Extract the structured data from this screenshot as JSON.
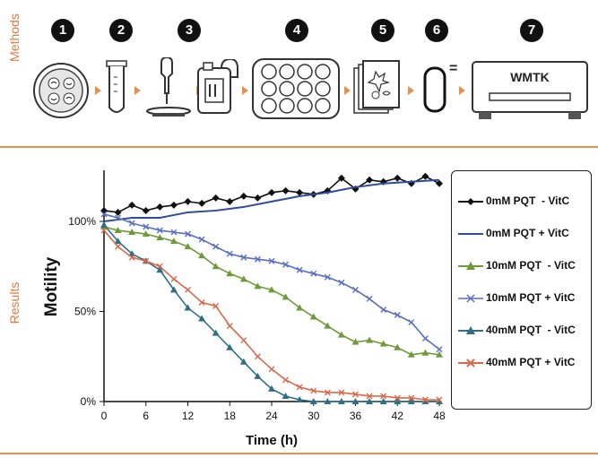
{
  "methods": {
    "label": "Methods",
    "steps": [
      "1",
      "2",
      "3",
      "4",
      "5",
      "6",
      "7"
    ],
    "device_label": "WMTK",
    "equals": "=",
    "icons": [
      "petri-dish-icon",
      "test-tube-icon",
      "pipette-drop-icon",
      "incubator-icon",
      "well-plate-icon",
      "image-stack-icon",
      "capsule-icon",
      "wmtk-device-icon"
    ],
    "accent_color": "#e8914e"
  },
  "results": {
    "label": "Results"
  },
  "chart_data": {
    "type": "line",
    "xlabel": "Time (h)",
    "ylabel": "Motility",
    "xlim": [
      0,
      48
    ],
    "ylim": [
      0,
      100
    ],
    "xticks": [
      0,
      6,
      12,
      18,
      24,
      30,
      36,
      42,
      48
    ],
    "yticks": [
      0,
      50,
      100
    ],
    "ytick_labels": [
      "0%",
      "50%",
      "100%"
    ],
    "grid": false,
    "legend_position": "right",
    "series": [
      {
        "name": "0mM PQT  - VitC",
        "color": "#111111",
        "marker": "diamond",
        "x": [
          0,
          2,
          4,
          6,
          8,
          10,
          12,
          14,
          16,
          18,
          20,
          22,
          24,
          26,
          28,
          30,
          32,
          34,
          36,
          38,
          40,
          42,
          44,
          46,
          48
        ],
        "y": [
          106,
          105,
          109,
          106,
          108,
          109,
          111,
          110,
          113,
          111,
          114,
          113,
          116,
          117,
          116,
          115,
          117,
          124,
          118,
          123,
          122,
          124,
          121,
          125,
          121
        ]
      },
      {
        "name": "0mM PQT + VitC",
        "color": "#2f4b9c",
        "marker": "none",
        "x": [
          0,
          4,
          8,
          12,
          16,
          20,
          24,
          28,
          32,
          36,
          40,
          44,
          48
        ],
        "y": [
          100,
          102,
          102,
          105,
          106,
          108,
          111,
          114,
          116,
          119,
          121,
          122,
          123
        ]
      },
      {
        "name": "10mM PQT  - VitC",
        "color": "#6f9a3a",
        "marker": "triangle",
        "x": [
          0,
          2,
          4,
          6,
          8,
          10,
          12,
          14,
          16,
          18,
          20,
          22,
          24,
          26,
          28,
          30,
          32,
          34,
          36,
          38,
          40,
          42,
          44,
          46,
          48
        ],
        "y": [
          97,
          95,
          94,
          93,
          91,
          89,
          86,
          81,
          75,
          71,
          68,
          64,
          62,
          58,
          52,
          47,
          42,
          37,
          33,
          34,
          32,
          30,
          26,
          27,
          26
        ]
      },
      {
        "name": "10mM PQT + VitC",
        "color": "#5a6fbf",
        "marker": "x",
        "x": [
          0,
          2,
          4,
          6,
          8,
          10,
          12,
          14,
          16,
          18,
          20,
          22,
          24,
          26,
          28,
          30,
          32,
          34,
          36,
          38,
          40,
          42,
          44,
          46,
          48
        ],
        "y": [
          104,
          102,
          99,
          97,
          95,
          94,
          93,
          90,
          86,
          82,
          80,
          79,
          78,
          76,
          73,
          71,
          69,
          66,
          62,
          57,
          51,
          48,
          44,
          35,
          29
        ]
      },
      {
        "name": "40mM PQT  - VitC",
        "color": "#2d6f86",
        "marker": "triangle",
        "x": [
          0,
          2,
          4,
          6,
          8,
          10,
          12,
          14,
          16,
          18,
          20,
          22,
          24,
          26,
          28,
          30,
          32,
          34,
          36,
          38,
          40,
          42,
          44,
          46,
          48
        ],
        "y": [
          98,
          89,
          82,
          78,
          73,
          62,
          52,
          46,
          38,
          30,
          22,
          14,
          7,
          3,
          1,
          0,
          0,
          0,
          0,
          0,
          0,
          0,
          0,
          0,
          0
        ]
      },
      {
        "name": "40mM PQT + VitC",
        "color": "#d9694a",
        "marker": "x",
        "x": [
          0,
          2,
          4,
          6,
          8,
          10,
          12,
          14,
          16,
          18,
          20,
          22,
          24,
          26,
          28,
          30,
          32,
          34,
          36,
          38,
          40,
          42,
          44,
          46,
          48
        ],
        "y": [
          95,
          86,
          80,
          78,
          75,
          68,
          62,
          55,
          53,
          42,
          34,
          25,
          18,
          12,
          8,
          6,
          5,
          5,
          4,
          3,
          3,
          2,
          2,
          1,
          1
        ]
      }
    ]
  }
}
